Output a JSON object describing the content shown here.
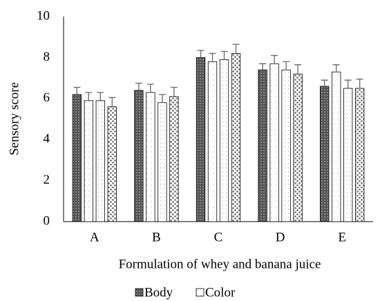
{
  "chart_data": {
    "type": "bar",
    "y_label": "Sensory score",
    "x_label": "Formulation of whey and banana juice",
    "categories": [
      "A",
      "B",
      "C",
      "D",
      "E"
    ],
    "series": [
      {
        "name": "Body",
        "color": "#555555",
        "values": [
          6.2,
          6.4,
          8.0,
          7.4,
          6.6
        ],
        "errors": [
          0.35,
          0.35,
          0.35,
          0.3,
          0.3
        ]
      },
      {
        "name": "Color",
        "color": "#ffffff",
        "values": [
          5.9,
          6.3,
          7.8,
          7.7,
          7.3
        ],
        "errors": [
          0.4,
          0.4,
          0.4,
          0.4,
          0.35
        ]
      },
      {
        "color": "#f4f4f4",
        "values": [
          5.9,
          5.8,
          7.9,
          7.4,
          6.5
        ],
        "errors": [
          0.4,
          0.4,
          0.4,
          0.4,
          0.4
        ]
      },
      {
        "color": "#9a9a9a",
        "values": [
          5.6,
          6.1,
          8.2,
          7.2,
          6.5
        ],
        "errors": [
          0.45,
          0.45,
          0.45,
          0.45,
          0.45
        ]
      }
    ],
    "ylim": [
      0,
      10
    ],
    "yticks": [
      0,
      2,
      4,
      6,
      8,
      10
    ],
    "grid": false,
    "legend": "bottom"
  }
}
